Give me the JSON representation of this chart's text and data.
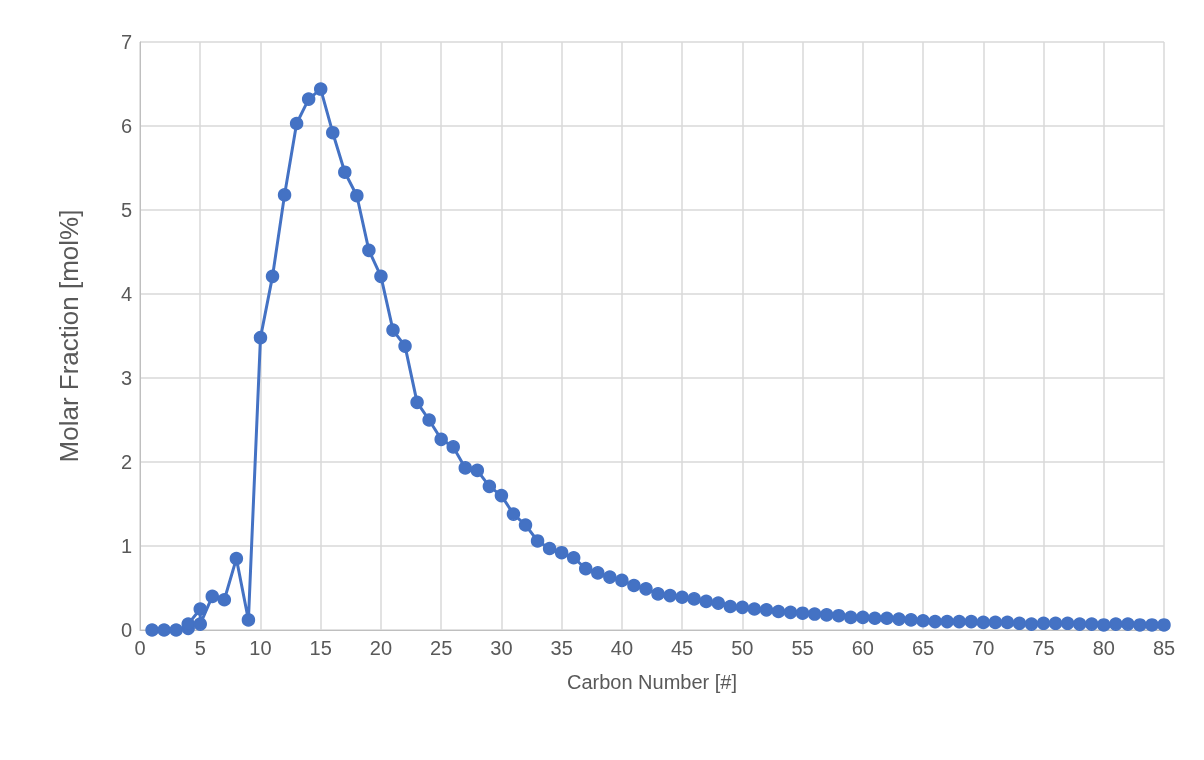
{
  "chart_data": {
    "type": "line",
    "xlabel": "Carbon Number [#]",
    "ylabel": "Molar Fraction [mol%]",
    "x": [
      1,
      2,
      3,
      4,
      4,
      5,
      5,
      6,
      7,
      8,
      9,
      10,
      11,
      12,
      13,
      14,
      15,
      16,
      17,
      18,
      19,
      20,
      21,
      22,
      23,
      24,
      25,
      26,
      27,
      28,
      29,
      30,
      31,
      32,
      33,
      34,
      35,
      36,
      37,
      38,
      39,
      40,
      41,
      42,
      43,
      44,
      45,
      46,
      47,
      48,
      49,
      50,
      51,
      52,
      53,
      54,
      55,
      56,
      57,
      58,
      59,
      60,
      61,
      62,
      63,
      64,
      65,
      66,
      67,
      68,
      69,
      70,
      71,
      72,
      73,
      74,
      75,
      76,
      77,
      78,
      79,
      80,
      81,
      82,
      83,
      84,
      85
    ],
    "series": [
      {
        "color": "#4472c4",
        "values": [
          0,
          0,
          0,
          0.02,
          0.07,
          0.25,
          0.07,
          0.4,
          0.36,
          0.85,
          0.12,
          3.48,
          4.21,
          5.18,
          6.03,
          6.32,
          6.44,
          5.92,
          5.45,
          5.17,
          4.52,
          4.21,
          3.57,
          3.38,
          2.71,
          2.5,
          2.27,
          2.18,
          1.93,
          1.9,
          1.71,
          1.6,
          1.38,
          1.25,
          1.06,
          0.97,
          0.92,
          0.86,
          0.73,
          0.68,
          0.63,
          0.59,
          0.53,
          0.49,
          0.43,
          0.41,
          0.39,
          0.37,
          0.34,
          0.32,
          0.28,
          0.27,
          0.25,
          0.24,
          0.22,
          0.21,
          0.2,
          0.19,
          0.18,
          0.17,
          0.15,
          0.15,
          0.14,
          0.14,
          0.13,
          0.12,
          0.11,
          0.1,
          0.1,
          0.1,
          0.1,
          0.09,
          0.09,
          0.09,
          0.08,
          0.07,
          0.08,
          0.08,
          0.08,
          0.07,
          0.07,
          0.06,
          0.07,
          0.07,
          0.06,
          0.06,
          0.06
        ]
      }
    ],
    "xlim": [
      0,
      85
    ],
    "xticks": [
      0,
      5,
      10,
      15,
      20,
      25,
      30,
      35,
      40,
      45,
      50,
      55,
      60,
      65,
      70,
      75,
      80,
      85
    ],
    "ylim": [
      0,
      7
    ],
    "yticks": [
      0,
      1,
      2,
      3,
      4,
      5,
      6,
      7
    ],
    "grid": true,
    "marker": "circle",
    "line_style": "solid"
  }
}
